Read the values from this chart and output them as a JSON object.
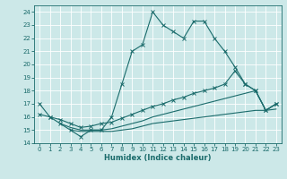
{
  "title": "",
  "xlabel": "Humidex (Indice chaleur)",
  "xlim": [
    -0.5,
    23.5
  ],
  "ylim": [
    14,
    24.5
  ],
  "yticks": [
    14,
    15,
    16,
    17,
    18,
    19,
    20,
    21,
    22,
    23,
    24
  ],
  "xticks": [
    0,
    1,
    2,
    3,
    4,
    5,
    6,
    7,
    8,
    9,
    10,
    11,
    12,
    13,
    14,
    15,
    16,
    17,
    18,
    19,
    20,
    21,
    22,
    23
  ],
  "bg_color": "#cce8e8",
  "line_color": "#1a6b6b",
  "grid_color": "#ffffff",
  "line1_x": [
    0,
    1,
    2,
    3,
    4,
    5,
    6,
    7,
    8,
    9,
    10,
    11,
    12,
    13,
    14,
    15,
    16,
    17,
    18,
    19,
    20,
    21,
    22,
    23
  ],
  "line1_y": [
    17,
    16,
    15.5,
    15,
    14.5,
    15,
    15,
    16,
    18.5,
    21,
    21.5,
    24,
    23,
    22.5,
    22,
    23.3,
    23.3,
    22,
    21,
    19.8,
    18.5,
    18,
    16.5,
    17
  ],
  "line2_x": [
    0,
    1,
    2,
    3,
    4,
    5,
    6,
    7,
    8,
    9,
    10,
    11,
    12,
    13,
    14,
    15,
    16,
    17,
    18,
    19,
    20,
    21,
    22,
    23
  ],
  "line2_y": [
    16.2,
    16.0,
    15.8,
    15.5,
    15.2,
    15.3,
    15.5,
    15.6,
    15.9,
    16.2,
    16.5,
    16.8,
    17.0,
    17.3,
    17.5,
    17.8,
    18.0,
    18.2,
    18.5,
    19.5,
    18.5,
    18.0,
    16.5,
    17.0
  ],
  "line3_x": [
    2,
    3,
    4,
    5,
    6,
    7,
    8,
    9,
    10,
    11,
    12,
    13,
    14,
    15,
    16,
    17,
    18,
    19,
    20,
    21,
    22,
    23
  ],
  "line3_y": [
    15.5,
    15.2,
    15.0,
    15.0,
    15.0,
    15.1,
    15.3,
    15.5,
    15.7,
    16.0,
    16.2,
    16.4,
    16.6,
    16.8,
    17.0,
    17.2,
    17.4,
    17.6,
    17.8,
    18.0,
    16.5,
    17.0
  ],
  "line4_x": [
    3,
    4,
    5,
    6,
    7,
    8,
    9,
    10,
    11,
    12,
    13,
    14,
    15,
    16,
    17,
    18,
    19,
    20,
    21,
    22,
    23
  ],
  "line4_y": [
    15.0,
    14.9,
    14.9,
    14.9,
    14.9,
    15.0,
    15.1,
    15.3,
    15.5,
    15.6,
    15.7,
    15.8,
    15.9,
    16.0,
    16.1,
    16.2,
    16.3,
    16.4,
    16.5,
    16.5,
    16.6
  ],
  "xlabel_fontsize": 6,
  "tick_fontsize": 5,
  "linewidth": 0.8,
  "markersize": 2.5
}
